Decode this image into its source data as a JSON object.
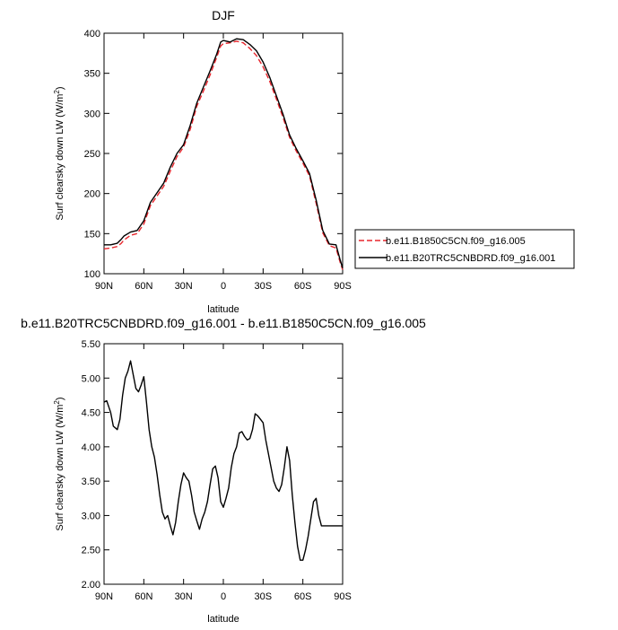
{
  "chart_data": [
    {
      "type": "line",
      "title": "DJF",
      "xlabel": "latitude",
      "ylabel": "Surf clearsky down LW (W/m²)",
      "ylabel_main": "Surf clearsky down LW (W/m",
      "ylabel_sup": "2",
      "ylabel_close": ")",
      "xlim": [
        90,
        -90
      ],
      "ylim": [
        100,
        400
      ],
      "x_ticks": [
        90,
        60,
        30,
        0,
        -30,
        -60,
        -90
      ],
      "x_tick_labels": [
        "90N",
        "60N",
        "30N",
        "0",
        "30S",
        "60S",
        "90S"
      ],
      "y_ticks": [
        100,
        150,
        200,
        250,
        300,
        350,
        400
      ],
      "y_tick_labels": [
        "100",
        "150",
        "200",
        "250",
        "300",
        "350",
        "400"
      ],
      "legend": {
        "placement": "right",
        "entries": [
          "b.e11.B1850C5CN.f09_g16.005",
          "b.e11.B20TRC5CNBDRD.f09_g16.001"
        ]
      },
      "x": [
        90,
        85,
        80,
        77,
        75,
        70,
        65,
        60,
        55,
        50,
        45,
        40,
        35,
        30,
        25,
        20,
        15,
        10,
        5,
        2,
        0,
        -5,
        -10,
        -15,
        -20,
        -25,
        -30,
        -35,
        -40,
        -45,
        -50,
        -55,
        -60,
        -65,
        -70,
        -75,
        -80,
        -85,
        -88,
        -90
      ],
      "series": [
        {
          "name": "b.e11.B1850C5CN.f09_g16.005",
          "color": "#e8262d",
          "dash": true,
          "values": [
            131,
            132,
            134,
            138,
            142,
            148,
            150,
            162,
            185,
            197,
            209,
            228,
            246,
            258,
            280,
            309,
            328,
            348,
            370,
            384,
            387,
            388,
            390,
            388,
            381,
            372,
            358,
            340,
            318,
            295,
            270,
            253,
            238,
            222,
            188,
            151,
            135,
            132,
            115,
            105
          ]
        },
        {
          "name": "b.e11.B20TRC5CNBDRD.f09_g16.001",
          "color": "#000000",
          "dash": false,
          "values": [
            136,
            136,
            138,
            143,
            147,
            152,
            154,
            166,
            189,
            201,
            213,
            233,
            250,
            261,
            285,
            313,
            333,
            353,
            374,
            389,
            391,
            389,
            393,
            392,
            386,
            378,
            364,
            345,
            322,
            299,
            273,
            256,
            241,
            225,
            192,
            154,
            137,
            136,
            118,
            107
          ]
        }
      ]
    },
    {
      "type": "line",
      "title": "b.e11.B20TRC5CNBDRD.f09_g16.001 - b.e11.B1850C5CN.f09_g16.005",
      "xlabel": "latitude",
      "ylabel": "Surf clearsky down LW (W/m²)",
      "ylabel_main": "Surf clearsky down LW (W/m",
      "ylabel_sup": "2",
      "ylabel_close": ")",
      "xlim": [
        90,
        -90
      ],
      "ylim": [
        2.0,
        5.5
      ],
      "x_ticks": [
        90,
        60,
        30,
        0,
        -30,
        -60,
        -90
      ],
      "x_tick_labels": [
        "90N",
        "60N",
        "30N",
        "0",
        "30S",
        "60S",
        "90S"
      ],
      "y_ticks": [
        2.0,
        2.5,
        3.0,
        3.5,
        4.0,
        4.5,
        5.0,
        5.5
      ],
      "y_tick_labels": [
        "2.00",
        "2.50",
        "3.00",
        "3.50",
        "4.00",
        "4.50",
        "5.00",
        "5.50"
      ],
      "x": [
        90,
        88,
        85,
        83,
        80,
        78,
        76,
        74,
        72,
        70,
        68,
        66,
        64,
        62,
        60,
        58,
        56,
        54,
        52,
        50,
        48,
        46,
        44,
        42,
        40,
        38,
        36,
        34,
        32,
        30,
        28,
        26,
        24,
        22,
        20,
        18,
        16,
        14,
        12,
        10,
        8,
        6,
        4,
        2,
        0,
        -2,
        -4,
        -6,
        -8,
        -10,
        -12,
        -14,
        -16,
        -18,
        -20,
        -22,
        -24,
        -26,
        -28,
        -30,
        -32,
        -34,
        -36,
        -38,
        -40,
        -42,
        -44,
        -46,
        -48,
        -50,
        -52,
        -54,
        -56,
        -58,
        -60,
        -62,
        -64,
        -66,
        -68,
        -70,
        -72,
        -74,
        -76,
        -78,
        -80,
        -82,
        -84,
        -86,
        -88,
        -90
      ],
      "series": [
        {
          "name": "",
          "color": "#000000",
          "dash": false,
          "values": [
            4.65,
            4.67,
            4.5,
            4.3,
            4.25,
            4.4,
            4.75,
            5.0,
            5.1,
            5.25,
            5.05,
            4.85,
            4.8,
            4.9,
            5.02,
            4.65,
            4.25,
            4.0,
            3.85,
            3.6,
            3.3,
            3.05,
            2.95,
            3.0,
            2.85,
            2.72,
            2.9,
            3.2,
            3.45,
            3.62,
            3.55,
            3.5,
            3.3,
            3.05,
            2.92,
            2.8,
            2.95,
            3.05,
            3.2,
            3.45,
            3.68,
            3.72,
            3.55,
            3.2,
            3.12,
            3.25,
            3.4,
            3.7,
            3.9,
            4.0,
            4.2,
            4.22,
            4.15,
            4.1,
            4.12,
            4.25,
            4.48,
            4.45,
            4.4,
            4.35,
            4.1,
            3.9,
            3.7,
            3.5,
            3.4,
            3.35,
            3.45,
            3.7,
            4.0,
            3.8,
            3.3,
            2.9,
            2.55,
            2.35,
            2.35,
            2.5,
            2.7,
            2.95,
            3.2,
            3.25,
            3.0,
            2.85,
            2.85,
            2.85,
            2.85,
            2.85,
            2.85,
            2.85,
            2.85,
            2.85
          ]
        }
      ]
    }
  ]
}
